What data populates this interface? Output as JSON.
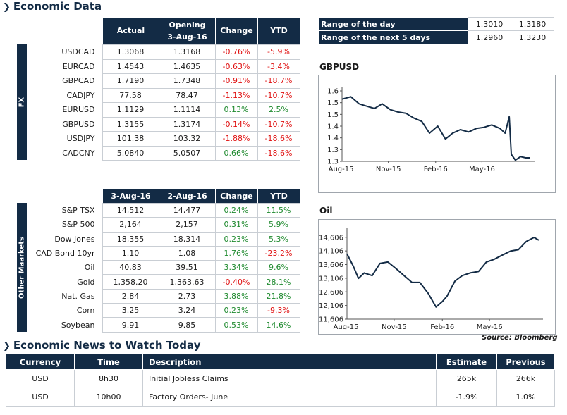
{
  "section_economic_data": "Economic Data",
  "fx_group_label": "FX",
  "other_group_label": "Other Maarkets",
  "fx_table": {
    "headers": [
      "Actual",
      "Opening\n3-Aug-16",
      "Change",
      "YTD"
    ],
    "header_opening_line1": "Opening",
    "header_opening_line2": "3-Aug-16",
    "rows": [
      {
        "name": "USDCAD",
        "actual": "1.3068",
        "opening": "1.3168",
        "change": "-0.76%",
        "ytd": "-5.9%"
      },
      {
        "name": "EURCAD",
        "actual": "1.4543",
        "opening": "1.4635",
        "change": "-0.63%",
        "ytd": "-3.4%"
      },
      {
        "name": "GBPCAD",
        "actual": "1.7190",
        "opening": "1.7348",
        "change": "-0.91%",
        "ytd": "-18.7%"
      },
      {
        "name": "CADJPY",
        "actual": "77.58",
        "opening": "78.47",
        "change": "-1.13%",
        "ytd": "-10.7%"
      },
      {
        "name": "EURUSD",
        "actual": "1.1129",
        "opening": "1.1114",
        "change": "0.13%",
        "ytd": "2.5%"
      },
      {
        "name": "GBPUSD",
        "actual": "1.3155",
        "opening": "1.3174",
        "change": "-0.14%",
        "ytd": "-10.7%"
      },
      {
        "name": "USDJPY",
        "actual": "101.38",
        "opening": "103.32",
        "change": "-1.88%",
        "ytd": "-18.6%"
      },
      {
        "name": "CADCNY",
        "actual": "5.0840",
        "opening": "5.0507",
        "change": "0.66%",
        "ytd": "-18.6%"
      }
    ]
  },
  "other_table": {
    "header_col1": "3-Aug-16",
    "header_col2": "2-Aug-16",
    "header_change": "Change",
    "header_ytd": "YTD",
    "rows": [
      {
        "name": "S&P TSX",
        "col1": "14,512",
        "col2": "14,477",
        "change": "0.24%",
        "ytd": "11.5%"
      },
      {
        "name": "S&P 500",
        "col1": "2,164",
        "col2": "2,157",
        "change": "0.31%",
        "ytd": "5.9%"
      },
      {
        "name": "Dow Jones",
        "col1": "18,355",
        "col2": "18,314",
        "change": "0.23%",
        "ytd": "5.3%"
      },
      {
        "name": "CAD Bond 10yr",
        "col1": "1.10",
        "col2": "1.08",
        "change": "1.76%",
        "ytd": "-23.2%"
      },
      {
        "name": "Oil",
        "col1": "40.83",
        "col2": "39.51",
        "change": "3.34%",
        "ytd": "9.6%"
      },
      {
        "name": "Gold",
        "col1": "1,358.20",
        "col2": "1,363.63",
        "change": "-0.40%",
        "ytd": "28.1%"
      },
      {
        "name": "Nat. Gas",
        "col1": "2.84",
        "col2": "2.73",
        "change": "3.88%",
        "ytd": "21.8%"
      },
      {
        "name": "Corn",
        "col1": "3.25",
        "col2": "3.24",
        "change": "0.23%",
        "ytd": "-9.3%"
      },
      {
        "name": "Soybean",
        "col1": "9.91",
        "col2": "9.85",
        "change": "0.53%",
        "ytd": "14.6%"
      }
    ]
  },
  "range_table": {
    "rows": [
      {
        "label": "Range of the day",
        "low": "1.3010",
        "high": "1.3180"
      },
      {
        "label": "Range of the next 5 days",
        "low": "1.2960",
        "high": "1.3230"
      }
    ]
  },
  "colors": {
    "navy": "#132b45",
    "positive": "#1e8a2e",
    "negative": "#e01010"
  },
  "chart_data": [
    {
      "type": "line",
      "title": "GBPUSD",
      "ylim": [
        1.3,
        1.6
      ],
      "yticks": [
        "1.6",
        "1.5",
        "1.5",
        "1.4",
        "1.4",
        "1.3",
        "1.3"
      ],
      "ytick_values": [
        1.6,
        1.55,
        1.5,
        1.45,
        1.4,
        1.35,
        1.3
      ],
      "xticks": [
        "Aug-15",
        "Nov-15",
        "Feb-16",
        "May-16"
      ],
      "x_start": "2015-08-03",
      "x_end": "2016-08-03",
      "xtick_dates": [
        "2015-08-01",
        "2015-11-01",
        "2016-02-01",
        "2016-05-01"
      ],
      "series": [
        {
          "x": [
            "2015-08-03",
            "2015-08-20",
            "2015-09-05",
            "2015-09-20",
            "2015-10-05",
            "2015-10-20",
            "2015-11-05",
            "2015-11-20",
            "2015-12-05",
            "2015-12-20",
            "2016-01-05",
            "2016-01-20",
            "2016-02-05",
            "2016-02-20",
            "2016-03-05",
            "2016-03-20",
            "2016-04-05",
            "2016-04-20",
            "2016-05-05",
            "2016-05-20",
            "2016-06-05",
            "2016-06-15",
            "2016-06-23",
            "2016-06-27",
            "2016-07-05",
            "2016-07-15",
            "2016-07-25",
            "2016-08-03"
          ],
          "values": [
            1.565,
            1.575,
            1.545,
            1.535,
            1.525,
            1.545,
            1.52,
            1.51,
            1.505,
            1.485,
            1.47,
            1.42,
            1.45,
            1.395,
            1.42,
            1.435,
            1.425,
            1.44,
            1.445,
            1.455,
            1.44,
            1.42,
            1.49,
            1.33,
            1.305,
            1.32,
            1.315,
            1.315
          ]
        }
      ]
    },
    {
      "type": "line",
      "title": "Oil",
      "ylim": [
        11606,
        14806
      ],
      "yticks": [
        "14,606",
        "14,106",
        "13,606",
        "13,106",
        "12,606",
        "12,106",
        "11,606"
      ],
      "ytick_values": [
        14606,
        14106,
        13606,
        13106,
        12606,
        12106,
        11606
      ],
      "xticks": [
        "Aug-15",
        "Nov-15",
        "Feb-16",
        "May-16"
      ],
      "x_start": "2015-08-03",
      "x_end": "2016-08-03",
      "xtick_dates": [
        "2015-08-01",
        "2015-11-01",
        "2016-02-01",
        "2016-05-01"
      ],
      "source": "Source: Bloomberg",
      "series": [
        {
          "x": [
            "2015-08-03",
            "2015-08-15",
            "2015-08-25",
            "2015-09-05",
            "2015-09-20",
            "2015-10-05",
            "2015-10-20",
            "2015-11-05",
            "2015-11-20",
            "2015-12-05",
            "2015-12-20",
            "2016-01-05",
            "2016-01-20",
            "2016-02-01",
            "2016-02-10",
            "2016-02-25",
            "2016-03-10",
            "2016-03-25",
            "2016-04-10",
            "2016-04-25",
            "2016-05-10",
            "2016-05-25",
            "2016-06-10",
            "2016-06-25",
            "2016-07-10",
            "2016-07-25",
            "2016-08-03"
          ],
          "values": [
            14000,
            13550,
            13100,
            13300,
            13200,
            13650,
            13700,
            13450,
            13200,
            12950,
            12950,
            12550,
            12050,
            12250,
            12450,
            13000,
            13200,
            13300,
            13350,
            13700,
            13800,
            13950,
            14100,
            14150,
            14450,
            14600,
            14500
          ]
        }
      ]
    }
  ],
  "section_news": "Economic News to Watch Today",
  "news_table": {
    "headers": {
      "currency": "Currency",
      "time": "Time",
      "description": "Description",
      "estimate": "Estimate",
      "previous": "Previous"
    },
    "rows": [
      {
        "currency": "USD",
        "time": "8h30",
        "description": "Initial Jobless Claims",
        "estimate": "265k",
        "previous": "266k"
      },
      {
        "currency": "USD",
        "time": "10h00",
        "description": "Factory Orders- June",
        "estimate": "-1.9%",
        "previous": "1.0%"
      }
    ]
  }
}
